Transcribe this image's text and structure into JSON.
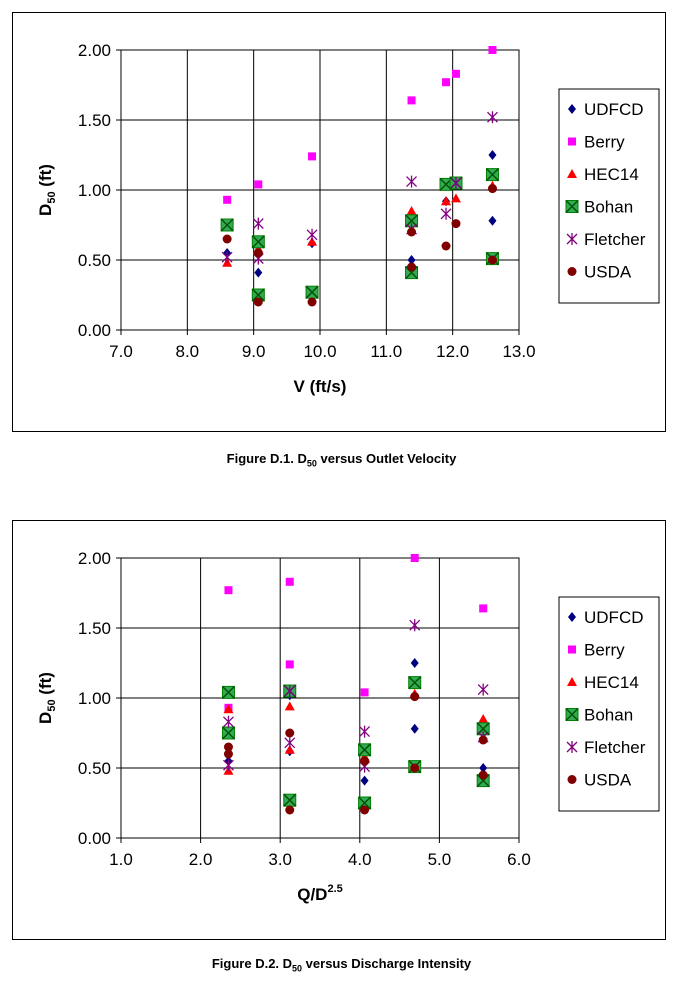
{
  "chart_data": [
    {
      "type": "scatter",
      "caption": {
        "prefix": "Figure D.1. D",
        "sub": "50",
        "suffix": " versus Outlet Velocity"
      },
      "ylabel": {
        "prefix": "D",
        "sub": "50",
        "suffix": " (ft)"
      },
      "xlabel": {
        "text": "V (ft/s)"
      },
      "xlim": [
        7.0,
        13.0
      ],
      "ylim": [
        0.0,
        2.0
      ],
      "xticks": [
        "7.0",
        "8.0",
        "9.0",
        "10.0",
        "11.0",
        "12.0",
        "13.0"
      ],
      "yticks": [
        "0.00",
        "0.50",
        "1.00",
        "1.50",
        "2.00"
      ],
      "grid": true,
      "legend_position": "right",
      "series": [
        {
          "name": "UDFCD",
          "marker": "diamond",
          "color": "#000080",
          "points": [
            [
              8.6,
              0.55
            ],
            [
              9.07,
              0.41
            ],
            [
              9.07,
              0.62
            ],
            [
              9.88,
              0.62
            ],
            [
              11.38,
              0.5
            ],
            [
              11.9,
              0.92
            ],
            [
              12.05,
              1.04
            ],
            [
              12.6,
              1.25
            ],
            [
              12.6,
              0.78
            ]
          ]
        },
        {
          "name": "Berry",
          "marker": "square",
          "color": "#ff00ff",
          "points": [
            [
              8.6,
              0.93
            ],
            [
              9.07,
              1.04
            ],
            [
              9.88,
              1.24
            ],
            [
              11.38,
              1.64
            ],
            [
              11.9,
              1.77
            ],
            [
              12.05,
              1.83
            ],
            [
              12.6,
              2.0
            ]
          ]
        },
        {
          "name": "HEC14",
          "marker": "triangle",
          "color": "#ff0000",
          "points": [
            [
              8.6,
              0.48
            ],
            [
              9.07,
              0.58
            ],
            [
              9.88,
              0.63
            ],
            [
              11.38,
              0.85
            ],
            [
              11.9,
              0.92
            ],
            [
              12.05,
              0.94
            ],
            [
              12.6,
              1.03
            ]
          ]
        },
        {
          "name": "Bohan",
          "marker": "xsquare",
          "color": "#008000",
          "points": [
            [
              8.6,
              0.75
            ],
            [
              9.07,
              0.63
            ],
            [
              9.07,
              0.25
            ],
            [
              9.88,
              0.27
            ],
            [
              11.38,
              0.78
            ],
            [
              11.38,
              0.41
            ],
            [
              11.9,
              1.04
            ],
            [
              12.05,
              1.05
            ],
            [
              12.6,
              1.11
            ],
            [
              12.6,
              0.51
            ]
          ]
        },
        {
          "name": "Fletcher",
          "marker": "star",
          "color": "#800080",
          "points": [
            [
              8.6,
              0.52
            ],
            [
              9.07,
              0.76
            ],
            [
              9.07,
              0.51
            ],
            [
              9.88,
              0.68
            ],
            [
              11.38,
              1.06
            ],
            [
              11.38,
              0.72
            ],
            [
              11.9,
              0.83
            ],
            [
              12.05,
              1.05
            ],
            [
              12.6,
              1.52
            ]
          ]
        },
        {
          "name": "USDA",
          "marker": "circle",
          "color": "#800000",
          "points": [
            [
              8.6,
              0.65
            ],
            [
              9.07,
              0.55
            ],
            [
              9.07,
              0.2
            ],
            [
              9.88,
              0.2
            ],
            [
              11.38,
              0.7
            ],
            [
              11.38,
              0.45
            ],
            [
              11.9,
              0.6
            ],
            [
              12.05,
              0.76
            ],
            [
              12.6,
              1.01
            ],
            [
              12.6,
              0.5
            ]
          ]
        }
      ]
    },
    {
      "type": "scatter",
      "caption": {
        "prefix": "Figure D.2. D",
        "sub": "50",
        "suffix": " versus Discharge Intensity"
      },
      "ylabel": {
        "prefix": "D",
        "sub": "50",
        "suffix": " (ft)"
      },
      "xlabel": {
        "text": "Q/D",
        "sup": "2.5"
      },
      "xlim": [
        1.0,
        6.0
      ],
      "ylim": [
        0.0,
        2.0
      ],
      "xticks": [
        "1.0",
        "2.0",
        "3.0",
        "4.0",
        "5.0",
        "6.0"
      ],
      "yticks": [
        "0.00",
        "0.50",
        "1.00",
        "1.50",
        "2.00"
      ],
      "grid": true,
      "legend_position": "right",
      "series": [
        {
          "name": "UDFCD",
          "marker": "diamond",
          "color": "#000080",
          "points": [
            [
              2.35,
              0.55
            ],
            [
              3.12,
              0.62
            ],
            [
              3.12,
              1.02
            ],
            [
              4.06,
              0.41
            ],
            [
              4.69,
              1.25
            ],
            [
              4.69,
              0.78
            ],
            [
              5.55,
              0.5
            ]
          ]
        },
        {
          "name": "Berry",
          "marker": "square",
          "color": "#ff00ff",
          "points": [
            [
              2.35,
              1.77
            ],
            [
              2.35,
              0.93
            ],
            [
              3.12,
              1.83
            ],
            [
              3.12,
              1.24
            ],
            [
              4.06,
              1.04
            ],
            [
              4.69,
              2.0
            ],
            [
              5.55,
              1.64
            ]
          ]
        },
        {
          "name": "HEC14",
          "marker": "triangle",
          "color": "#ff0000",
          "points": [
            [
              2.35,
              0.48
            ],
            [
              2.35,
              0.92
            ],
            [
              3.12,
              0.94
            ],
            [
              3.12,
              0.63
            ],
            [
              4.06,
              0.58
            ],
            [
              4.69,
              1.03
            ],
            [
              5.55,
              0.85
            ]
          ]
        },
        {
          "name": "Bohan",
          "marker": "xsquare",
          "color": "#008000",
          "points": [
            [
              2.35,
              1.04
            ],
            [
              2.35,
              0.75
            ],
            [
              3.12,
              1.05
            ],
            [
              3.12,
              0.27
            ],
            [
              4.06,
              0.63
            ],
            [
              4.06,
              0.25
            ],
            [
              4.69,
              1.11
            ],
            [
              4.69,
              0.51
            ],
            [
              5.55,
              0.78
            ],
            [
              5.55,
              0.41
            ]
          ]
        },
        {
          "name": "Fletcher",
          "marker": "star",
          "color": "#800080",
          "points": [
            [
              2.35,
              0.83
            ],
            [
              2.35,
              0.52
            ],
            [
              3.12,
              0.68
            ],
            [
              3.12,
              1.05
            ],
            [
              4.06,
              0.76
            ],
            [
              4.06,
              0.51
            ],
            [
              4.69,
              1.52
            ],
            [
              5.55,
              1.06
            ],
            [
              5.55,
              0.72
            ]
          ]
        },
        {
          "name": "USDA",
          "marker": "circle",
          "color": "#800000",
          "points": [
            [
              2.35,
              0.65
            ],
            [
              2.35,
              0.6
            ],
            [
              3.12,
              0.75
            ],
            [
              3.12,
              0.2
            ],
            [
              4.06,
              0.55
            ],
            [
              4.06,
              0.2
            ],
            [
              4.69,
              1.01
            ],
            [
              4.69,
              0.5
            ],
            [
              5.55,
              0.7
            ],
            [
              5.55,
              0.45
            ]
          ]
        }
      ]
    }
  ]
}
